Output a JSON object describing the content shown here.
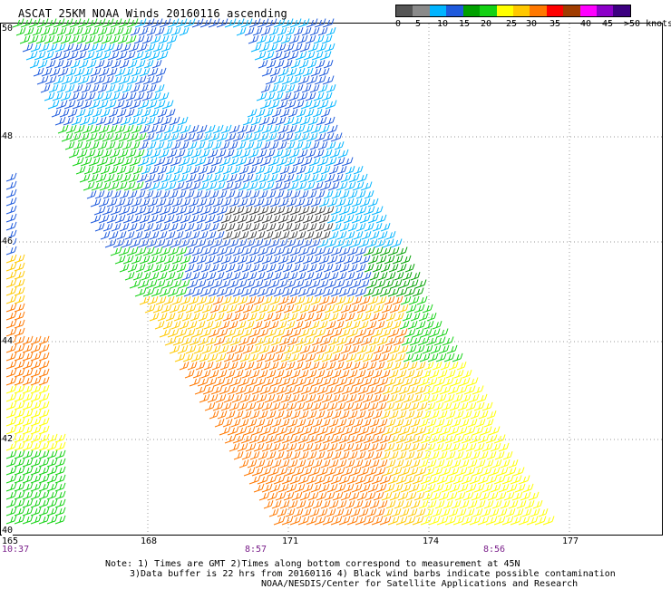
{
  "title": "ASCAT 25KM NOAA Winds 20160116 ascending",
  "legend": {
    "colors": [
      "#555555",
      "#8a8a8a",
      "#00b4ff",
      "#1e5adc",
      "#00a000",
      "#14d214",
      "#ffff00",
      "#ffc800",
      "#ff7800",
      "#ff0000",
      "#a03c00",
      "#ff00ff",
      "#8c00c8",
      "#3c0080"
    ],
    "labels": [
      "0",
      "5",
      "10",
      "15",
      "20",
      "25",
      "30",
      "35",
      "40",
      "45",
      ">50 knots"
    ]
  },
  "lat_labels": [
    "50",
    "48",
    "46",
    "44",
    "42",
    "40"
  ],
  "lon_labels": [
    "165",
    "168",
    "171",
    "174",
    "177"
  ],
  "time_labels": [
    "10:37",
    "8:57",
    "8:56"
  ],
  "notes": [
    "Note: 1) Times are GMT 2)Times along bottom correspond to measurement at 45N",
    "3)Data buffer is 22 hrs from 20160116 4) Black wind barbs indicate possible contamination",
    "NOAA/NESDIS/Center for Satellite Applications and Research"
  ]
}
